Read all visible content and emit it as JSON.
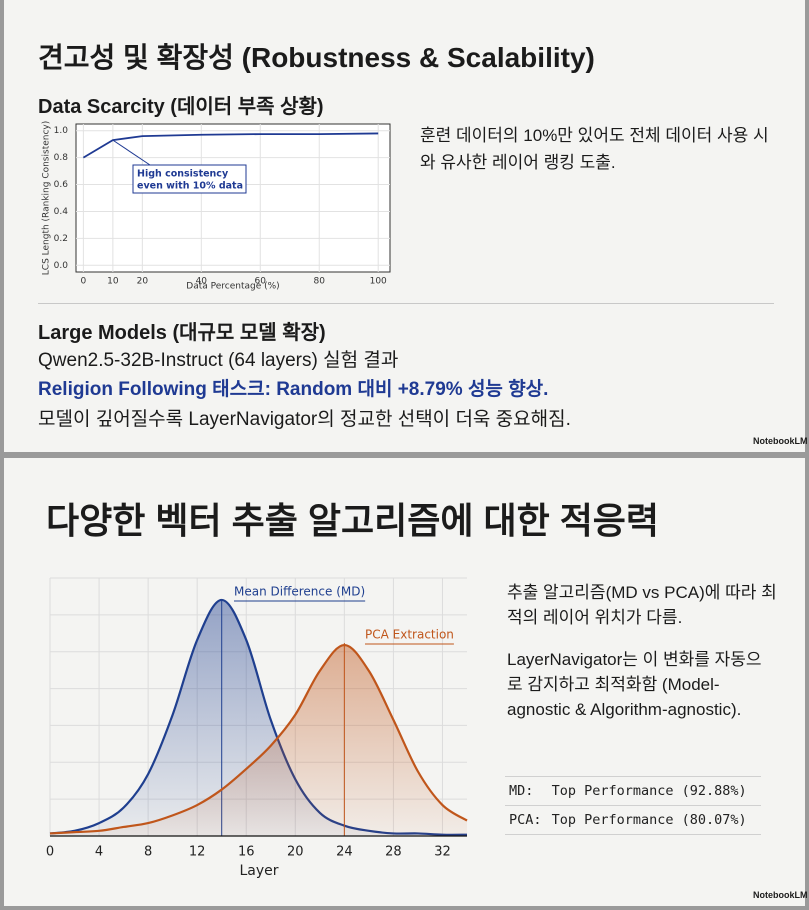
{
  "slides": [
    {
      "title": "견고성 및 확장성 (Robustness & Scalability)",
      "data_scarcity": {
        "heading": "Data Scarcity (데이터 부족 상황)",
        "chart": {
          "type": "line",
          "x": [
            0,
            10,
            20,
            40,
            60,
            80,
            100
          ],
          "series": [
            {
              "name": "LCS Length",
              "color": "#1f3a93",
              "values": [
                0.8,
                0.93,
                0.96,
                0.97,
                0.975,
                0.975,
                0.98
              ]
            }
          ],
          "xlabel": "Data Percentage (%)",
          "ylabel": "LCS Length (Ranking Consistency)",
          "xlim": [
            -2.5,
            104
          ],
          "ylim": [
            -0.05,
            1.05
          ],
          "xticks": [
            0,
            10,
            20,
            40,
            60,
            80,
            100
          ],
          "yticks": [
            {
              "value": 0,
              "label": "0.0"
            },
            {
              "value": 0.2,
              "label": "0.2"
            },
            {
              "value": 0.4,
              "label": "0.4"
            },
            {
              "value": 0.6,
              "label": "0.6"
            },
            {
              "value": 0.8,
              "label": "0.8"
            },
            {
              "value": 1,
              "label": "1.0"
            }
          ],
          "grid": true,
          "annotation": {
            "lines": [
              "High consistency",
              "even with 10% data"
            ],
            "x": 10,
            "y": 0.93
          }
        },
        "note": "훈련 데이터의 10%만 있어도 전체 데이터 사용 시와 유사한 레이어 랭킹 도출."
      },
      "large_models": {
        "heading": "Large Models (대규모 모델 확장)",
        "line1": "Qwen2.5-32B-Instruct (64 layers) 실험 결과",
        "highlight": "Religion Following 태스크: Random 대비 +8.79% 성능 향상.",
        "line2": "모델이 깊어질수록 LayerNavigator의 정교한 선택이 더욱 중요해짐."
      },
      "brand": "NotebookLM"
    },
    {
      "title": "다양한 벡터 추출 알고리즘에 대한 적응력",
      "chart": {
        "type": "area",
        "x": [
          0,
          2,
          4,
          6,
          8,
          10,
          12,
          14,
          16,
          18,
          20,
          22,
          24,
          26,
          28,
          30,
          32,
          34
        ],
        "series": [
          {
            "name": "Mean Difference (MD)",
            "color": "#1f3f8f",
            "peak": 14,
            "values": [
              0.01,
              0.02,
              0.05,
              0.11,
              0.24,
              0.47,
              0.76,
              0.915,
              0.76,
              0.45,
              0.22,
              0.09,
              0.04,
              0.02,
              0.01,
              0.01,
              0.005,
              0.005
            ]
          },
          {
            "name": "PCA Extraction",
            "color": "#c0561b",
            "peak": 24,
            "values": [
              0.01,
              0.015,
              0.02,
              0.035,
              0.05,
              0.08,
              0.12,
              0.18,
              0.26,
              0.35,
              0.47,
              0.64,
              0.74,
              0.64,
              0.45,
              0.25,
              0.12,
              0.06
            ]
          }
        ],
        "xlabel": "Layer",
        "xlim": [
          0,
          34
        ],
        "ylim": [
          0,
          1
        ],
        "xticks": [
          0,
          4,
          8,
          12,
          16,
          20,
          24,
          28,
          32
        ],
        "grid": true
      },
      "para1": "추출 알고리즘(MD vs PCA)에 따라 최적의 레이어 위치가 다름.",
      "para2": "LayerNavigator는 이 변화를 자동으로 감지하고 최적화함 (Model-agnostic & Algorithm-agnostic).",
      "table": {
        "rows": [
          [
            "MD:",
            "Top Performance (92.88%)"
          ],
          [
            "PCA:",
            "Top Performance (80.07%)"
          ]
        ]
      },
      "brand": "NotebookLM"
    }
  ]
}
